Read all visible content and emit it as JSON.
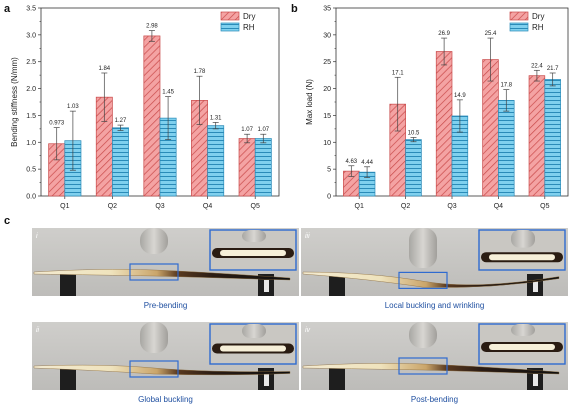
{
  "panels": {
    "a": "a",
    "b": "b",
    "c": "c"
  },
  "colors": {
    "dry_fill": "#f4a3a3",
    "dry_stroke": "#c94a4a",
    "rh_fill": "#7fd0ee",
    "rh_stroke": "#2a8bb8",
    "photo_bg": "#c9c8c6",
    "caption": "#1f4fa0",
    "inset_border": "#2f6bd0"
  },
  "chart_data": [
    {
      "type": "bar",
      "categories": [
        "Q1",
        "Q2",
        "Q3",
        "Q4",
        "Q5"
      ],
      "series": [
        {
          "name": "Dry",
          "values": [
            0.973,
            1.84,
            2.98,
            1.78,
            1.07
          ],
          "errors": [
            0.3,
            0.45,
            0.1,
            0.45,
            0.08
          ],
          "labels": [
            "0.973",
            "1.84",
            "2.98",
            "1.78",
            "1.07"
          ]
        },
        {
          "name": "RH",
          "values": [
            1.03,
            1.27,
            1.45,
            1.31,
            1.07
          ],
          "errors": [
            0.55,
            0.05,
            0.4,
            0.06,
            0.08
          ],
          "labels": [
            "1.03",
            "1.27",
            "1.45",
            "1.31",
            "1.07"
          ]
        }
      ],
      "ylabel": "Bending stiffness (N/mm)",
      "ylim": [
        0,
        3.5
      ],
      "yticks": [
        "0.0",
        "0.5",
        "1.0",
        "1.5",
        "2.0",
        "2.5",
        "3.0",
        "3.5"
      ],
      "legend": "top-right"
    },
    {
      "type": "bar",
      "categories": [
        "Q1",
        "Q2",
        "Q3",
        "Q4",
        "Q5"
      ],
      "series": [
        {
          "name": "Dry",
          "values": [
            4.63,
            17.1,
            26.9,
            25.4,
            22.4
          ],
          "errors": [
            1.0,
            5.0,
            2.5,
            4.0,
            1.0
          ],
          "labels": [
            "4.63",
            "17.1",
            "26.9",
            "25.4",
            "22.4"
          ]
        },
        {
          "name": "RH",
          "values": [
            4.44,
            10.5,
            14.9,
            17.8,
            21.7
          ],
          "errors": [
            1.0,
            0.4,
            3.0,
            2.0,
            1.2
          ],
          "labels": [
            "4.44",
            "10.5",
            "14.9",
            "17.8",
            "21.7"
          ]
        }
      ],
      "ylabel": "Max load (N)",
      "ylim": [
        0,
        35
      ],
      "yticks": [
        "0",
        "5",
        "10",
        "15",
        "20",
        "25",
        "30",
        "35"
      ],
      "legend": "top-right"
    }
  ],
  "photos": [
    {
      "id": "i",
      "caption": "Pre-bending",
      "bend": 0
    },
    {
      "id": "iii",
      "caption": "Local buckling and wrinkling",
      "bend": 14
    },
    {
      "id": "ii",
      "caption": "Global buckling",
      "bend": 5
    },
    {
      "id": "iv",
      "caption": "Post-bending",
      "bend": 0
    }
  ]
}
